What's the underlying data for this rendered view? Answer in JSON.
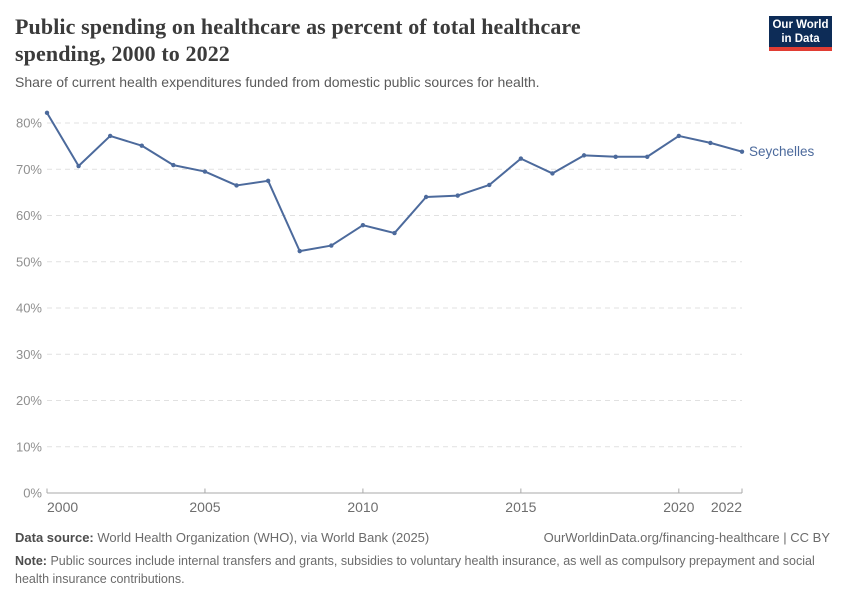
{
  "header": {
    "title": "Public spending on healthcare as percent of total healthcare spending, 2000 to 2022",
    "subtitle": "Share of current health expenditures funded from domestic public sources for health.",
    "logo": {
      "line1": "Our World",
      "line2": "in Data",
      "bg_color": "#0d2c57",
      "accent_color": "#e13d33"
    }
  },
  "chart_data": {
    "type": "line",
    "title": "Public spending on healthcare as percent of total healthcare spending, 2000 to 2022",
    "xlabel": "",
    "ylabel": "",
    "x": [
      2000,
      2001,
      2002,
      2003,
      2004,
      2005,
      2006,
      2007,
      2008,
      2009,
      2010,
      2011,
      2012,
      2013,
      2014,
      2015,
      2016,
      2017,
      2018,
      2019,
      2020,
      2021,
      2022
    ],
    "series": [
      {
        "name": "Seychelles",
        "color": "#4C6A9C",
        "values": [
          82.2,
          70.7,
          77.2,
          75.1,
          70.9,
          69.5,
          66.5,
          67.5,
          52.3,
          53.5,
          57.9,
          56.2,
          64.0,
          64.3,
          66.6,
          72.3,
          69.1,
          73.0,
          72.7,
          72.7,
          77.2,
          75.7,
          73.8
        ]
      }
    ],
    "xticks": [
      2000,
      2005,
      2010,
      2015,
      2020,
      2022
    ],
    "yticks": [
      0,
      10,
      20,
      30,
      40,
      50,
      60,
      70,
      80
    ],
    "ytick_suffix": "%",
    "ylim": [
      0,
      84
    ],
    "grid": "horizontal-dashed",
    "legend_position": "end-of-line",
    "colors": {
      "grid_line": "#e1e1e1",
      "axis_line": "#a9a9a9",
      "ytick_label": "#8f8f8f",
      "xtick_label": "#6e6e6e"
    }
  },
  "footer": {
    "datasource_label": "Data source:",
    "datasource_text": "World Health Organization (WHO), via World Bank (2025)",
    "citation": "OurWorldinData.org/financing-healthcare | CC BY",
    "note_label": "Note:",
    "note_text": "Public sources include internal transfers and grants, subsidies to voluntary health insurance, as well as compulsory prepayment and social health insurance contributions."
  }
}
